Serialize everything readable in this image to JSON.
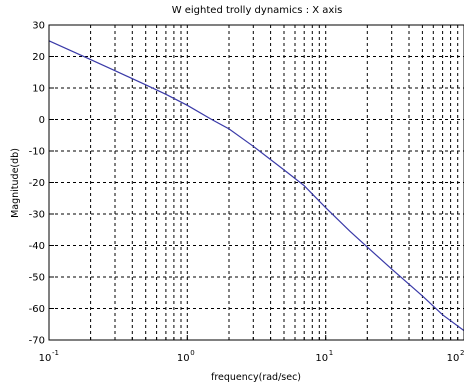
{
  "chart_data": {
    "type": "line",
    "title": "W eighted trolly  dynamics : X axis",
    "xlabel": "frequency(rad/sec)",
    "ylabel": "Magnitude(db)",
    "x_scale": "log",
    "xlim": [
      0.1,
      100
    ],
    "ylim": [
      -70,
      30
    ],
    "x_ticks": [
      {
        "value": 0.1,
        "base": "10",
        "exp": "-1"
      },
      {
        "value": 1,
        "base": "10",
        "exp": "0"
      },
      {
        "value": 10,
        "base": "10",
        "exp": "1"
      },
      {
        "value": 100,
        "base": "10",
        "exp": "2"
      }
    ],
    "y_ticks": [
      30,
      20,
      10,
      0,
      -10,
      -20,
      -30,
      -40,
      -50,
      -60,
      -70
    ],
    "grid": true,
    "grid_style": "dashed",
    "line_color": "#3a3aa8",
    "series": [
      {
        "x": [
          0.1,
          0.15,
          0.2,
          0.3,
          0.5,
          0.7,
          1,
          1.5,
          2,
          3,
          5,
          7,
          10,
          15,
          20,
          30,
          50,
          70,
          100
        ],
        "values": [
          25,
          21.5,
          19,
          15.5,
          11,
          8,
          4.5,
          0,
          -3,
          -8.5,
          -16,
          -21,
          -28,
          -35.5,
          -40.5,
          -47.5,
          -56,
          -62,
          -67
        ]
      }
    ]
  }
}
